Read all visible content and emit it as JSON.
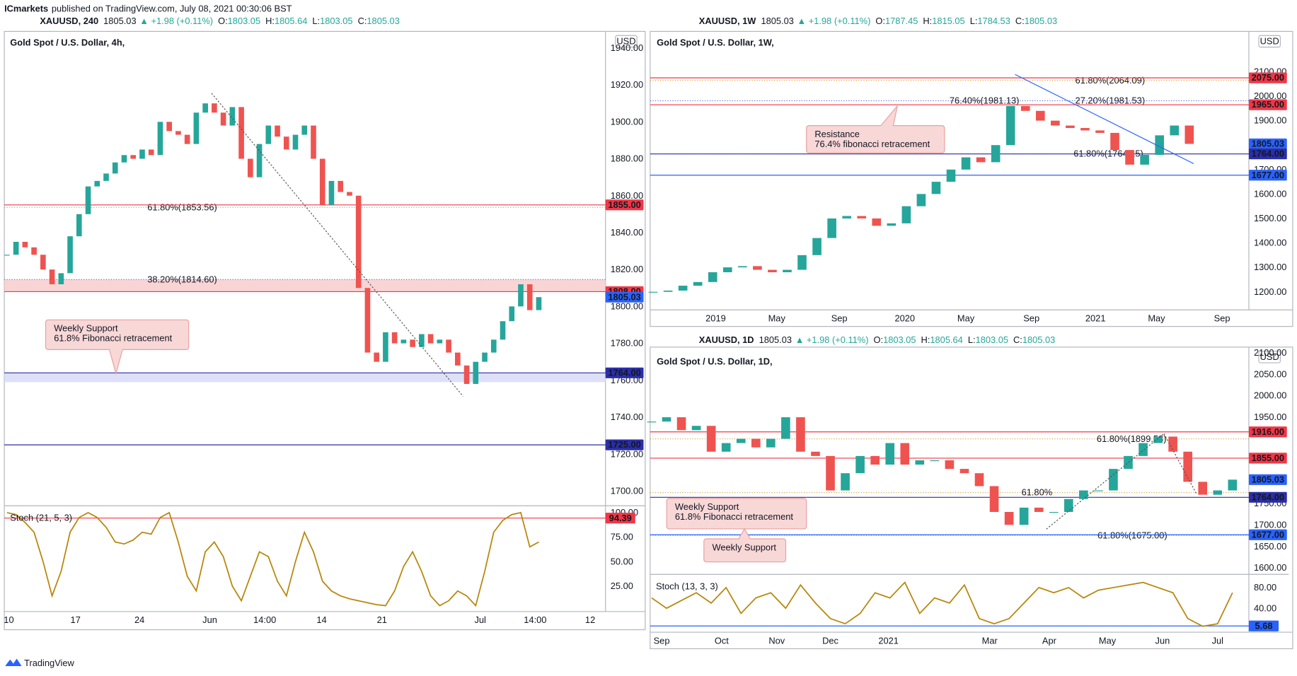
{
  "header": {
    "publisher": "ICmarkets",
    "published": "published on TradingView.com, July 08, 2021 00:30:06 BST"
  },
  "footer": {
    "brand": "TradingView"
  },
  "chart_data": [
    {
      "type": "candlestick",
      "symbol": "XAUUSD, 240",
      "last": 1805.03,
      "arrow": "▲",
      "change": "+1.98 (+0.11%)",
      "ohlc": [
        {
          "key": "O:",
          "value": 1803.05
        },
        {
          "key": "H:",
          "value": 1805.64
        },
        {
          "key": "L:",
          "value": 1803.05
        },
        {
          "key": "C:",
          "value": 1805.03
        }
      ],
      "title": "Gold Spot / U.S. Dollar, 4h,",
      "currency": "USD",
      "up_color": "#26a69a",
      "down_color": "#ef5350",
      "closes": [
        1828,
        1835,
        1832,
        1828,
        1820,
        1812,
        1818,
        1838,
        1850,
        1865,
        1868,
        1872,
        1878,
        1882,
        1880,
        1885,
        1882,
        1900,
        1895,
        1893,
        1888,
        1905,
        1910,
        1905,
        1898,
        1908,
        1880,
        1870,
        1888,
        1898,
        1892,
        1885,
        1893,
        1898,
        1880,
        1855,
        1868,
        1862,
        1860,
        1810,
        1775,
        1770,
        1786,
        1780,
        1782,
        1778,
        1785,
        1780,
        1782,
        1775,
        1768,
        1758,
        1770,
        1775,
        1782,
        1792,
        1800,
        1812,
        1798,
        1805.03
      ],
      "xlim": [
        -0.3,
        66.4
      ],
      "xticks": [
        {
          "value": 0.2,
          "label": "10"
        },
        {
          "value": 7.6,
          "label": "17"
        },
        {
          "value": 14.7,
          "label": "24"
        },
        {
          "value": 22.5,
          "label": "Jun"
        },
        {
          "value": 28.6,
          "label": "14:00"
        },
        {
          "value": 34.9,
          "label": "14"
        },
        {
          "value": 41.6,
          "label": "21"
        },
        {
          "value": 52.5,
          "label": "Jul"
        },
        {
          "value": 58.6,
          "label": "14:00"
        },
        {
          "value": 64.7,
          "label": "12"
        }
      ],
      "ylim": [
        1692,
        1949
      ],
      "yticks": [
        {
          "value": 1700,
          "label": "1700.00"
        },
        {
          "value": 1720,
          "label": "1720.00"
        },
        {
          "value": 1740,
          "label": "1740.00"
        },
        {
          "value": 1760,
          "label": "1760.00"
        },
        {
          "value": 1780,
          "label": "1780.00"
        },
        {
          "value": 1800,
          "label": "1800.00"
        },
        {
          "value": 1820,
          "label": "1820.00"
        },
        {
          "value": 1840,
          "label": "1840.00"
        },
        {
          "value": 1860,
          "label": "1860.00"
        },
        {
          "value": 1880,
          "label": "1880.00"
        },
        {
          "value": 1900,
          "label": "1900.00"
        },
        {
          "value": 1920,
          "label": "1920.00"
        },
        {
          "value": 1940,
          "label": "1940.00"
        }
      ],
      "price_tags": [
        {
          "value": 1855,
          "label": "1855.00",
          "color": "#f23645",
          "line": true
        },
        {
          "value": 1808,
          "label": "1808.00",
          "color": "#f23645",
          "line": true
        },
        {
          "value": 1805.03,
          "label": "1805.03",
          "color": "#2962ff",
          "line": false
        },
        {
          "value": 1764,
          "label": "1764.00",
          "color": "#2a2ea8",
          "line": true
        },
        {
          "value": 1725,
          "label": "1725.00",
          "color": "#2a2ea8",
          "line": true
        }
      ],
      "zones": [
        {
          "from": 1808,
          "to": 1814.6,
          "color": "#f8c9c9"
        },
        {
          "from": 1759,
          "to": 1764,
          "color": "#d5d8f5"
        }
      ],
      "fib_labels": [
        {
          "value": 1853.56,
          "label": "61.80%(1853.56)",
          "color": "#c8961e"
        },
        {
          "value": 1814.6,
          "label": "38.20%(1814.60)",
          "color": "#2962ff"
        }
      ],
      "lines": [
        {
          "x": [
            22.7,
            50.6
          ],
          "y": [
            1915.5,
            1751.3
          ],
          "color": "#555555",
          "dashed": true
        }
      ],
      "notes": [
        {
          "lines": [
            "Weekly Support",
            "61.8% Fibonacci retracement"
          ]
        }
      ],
      "stoch": {
        "label": "Stoch (21, 5, 3)",
        "color": "#b8860b",
        "values": [
          100,
          98,
          90,
          80,
          50,
          15,
          40,
          80,
          95,
          100,
          95,
          85,
          70,
          68,
          72,
          80,
          78,
          95,
          100,
          70,
          35,
          20,
          60,
          70,
          55,
          25,
          10,
          35,
          60,
          55,
          30,
          15,
          50,
          80,
          60,
          30,
          20,
          15,
          12,
          10,
          8,
          6,
          5,
          20,
          45,
          60,
          40,
          15,
          5,
          10,
          20,
          15,
          5,
          40,
          80,
          92,
          98,
          100,
          65,
          70
        ],
        "ylim": [
          -1,
          107
        ],
        "yticks": [
          {
            "value": 25,
            "label": "25.00"
          },
          {
            "value": 50,
            "label": "50.00"
          },
          {
            "value": 75,
            "label": "75.00"
          },
          {
            "value": 100,
            "label": "100.00"
          }
        ],
        "tag": {
          "value": 94.39,
          "color": "#f23645",
          "line": true
        }
      }
    },
    {
      "type": "candlestick",
      "symbol": "XAUUSD, 1W",
      "last": 1805.03,
      "arrow": "▲",
      "change": "+1.98 (+0.11%)",
      "ohlc": [
        {
          "key": "O:",
          "value": 1787.45
        },
        {
          "key": "H:",
          "value": 1815.05
        },
        {
          "key": "L:",
          "value": 1784.53
        },
        {
          "key": "C:",
          "value": 1805.03
        }
      ],
      "title": "Gold Spot / U.S. Dollar, 1W,",
      "currency": "USD",
      "up_color": "#26a69a",
      "down_color": "#ef5350",
      "closes": [
        1200,
        1205,
        1225,
        1240,
        1280,
        1300,
        1305,
        1290,
        1280,
        1290,
        1350,
        1420,
        1500,
        1510,
        1500,
        1470,
        1480,
        1550,
        1600,
        1650,
        1700,
        1750,
        1730,
        1800,
        1960,
        1940,
        1900,
        1880,
        1870,
        1860,
        1850,
        1780,
        1720,
        1760,
        1840,
        1880,
        1805.03
      ],
      "xlim": [
        -0.2,
        40
      ],
      "xticks": [
        {
          "value": 4.2,
          "label": "2019"
        },
        {
          "value": 8.3,
          "label": "May"
        },
        {
          "value": 12.5,
          "label": "Sep"
        },
        {
          "value": 16.9,
          "label": "2020"
        },
        {
          "value": 21,
          "label": "May"
        },
        {
          "value": 25.4,
          "label": "Sep"
        },
        {
          "value": 29.7,
          "label": "2021"
        },
        {
          "value": 33.8,
          "label": "May"
        },
        {
          "value": 38.2,
          "label": "Sep"
        }
      ],
      "ylim": [
        1126,
        2265
      ],
      "yticks": [
        {
          "value": 1200,
          "label": "1200.00"
        },
        {
          "value": 1300,
          "label": "1300.00"
        },
        {
          "value": 1400,
          "label": "1400.00"
        },
        {
          "value": 1500,
          "label": "1500.00"
        },
        {
          "value": 1600,
          "label": "1600.00"
        },
        {
          "value": 1700,
          "label": "1700.00"
        },
        {
          "value": 1900,
          "label": "1900.00"
        },
        {
          "value": 2000,
          "label": "2000.00"
        },
        {
          "value": 2100,
          "label": "2100.00"
        }
      ],
      "price_tags": [
        {
          "value": 2075,
          "label": "2075.00",
          "color": "#f23645",
          "line": true
        },
        {
          "value": 1965,
          "label": "1965.00",
          "color": "#f23645",
          "line": true
        },
        {
          "value": 1805.03,
          "label": "1805.03",
          "color": "#2962ff",
          "line": false
        },
        {
          "value": 1764,
          "label": "1764.00",
          "color": "#2a2ea8",
          "line": true
        },
        {
          "value": 1677,
          "label": "1677.00",
          "color": "#2962ff",
          "line": true
        }
      ],
      "zones": [],
      "fib_labels": [
        {
          "value": 2064.09,
          "label": "61.80%(2064.09)",
          "color": "#c8961e"
        },
        {
          "value": 1981.53,
          "label": "27.20%(1981.53)",
          "color": "#c8961e"
        },
        {
          "value": 1981.13,
          "label": "76.40%(1981.13)",
          "color": "#2962ff"
        },
        {
          "value": 1764.15,
          "label": "61.80%(1764.15)",
          "color": "#c8961e"
        }
      ],
      "lines": [
        {
          "x": [
            24.3,
            36.3
          ],
          "y": [
            2089,
            1724
          ],
          "color": "#2962ff",
          "dashed": false
        }
      ],
      "notes": [
        {
          "lines": [
            "Resistance",
            "76.4% fibonacci retracement"
          ]
        }
      ]
    },
    {
      "type": "candlestick",
      "symbol": "XAUUSD, 1D",
      "last": 1805.03,
      "arrow": "▲",
      "change": "+1.98 (+0.11%)",
      "ohlc": [
        {
          "key": "O:",
          "value": 1803.05
        },
        {
          "key": "H:",
          "value": 1805.64
        },
        {
          "key": "L:",
          "value": 1803.05
        },
        {
          "key": "C:",
          "value": 1805.03
        }
      ],
      "title": "Gold Spot / U.S. Dollar, 1D,",
      "currency": "USD",
      "up_color": "#26a69a",
      "down_color": "#ef5350",
      "closes": [
        1940,
        1950,
        1920,
        1930,
        1870,
        1890,
        1900,
        1880,
        1900,
        1950,
        1870,
        1860,
        1780,
        1820,
        1860,
        1840,
        1890,
        1840,
        1850,
        1850,
        1830,
        1820,
        1790,
        1730,
        1700,
        1740,
        1730,
        1730,
        1760,
        1780,
        1780,
        1830,
        1860,
        1890,
        1905,
        1870,
        1800,
        1770,
        1780,
        1805.03
      ],
      "xlim": [
        -0.1,
        40.1
      ],
      "xticks": [
        {
          "value": 0.67,
          "label": "Sep"
        },
        {
          "value": 4.7,
          "label": "Oct"
        },
        {
          "value": 8.4,
          "label": "Nov"
        },
        {
          "value": 12,
          "label": "Dec"
        },
        {
          "value": 15.9,
          "label": "2021"
        },
        {
          "value": 22.7,
          "label": "Mar"
        },
        {
          "value": 26.7,
          "label": "Apr"
        },
        {
          "value": 30.6,
          "label": "May"
        },
        {
          "value": 34.3,
          "label": "Jun"
        },
        {
          "value": 38,
          "label": "Jul"
        }
      ],
      "ylim": [
        1585,
        2113
      ],
      "yticks": [
        {
          "value": 1600,
          "label": "1600.00"
        },
        {
          "value": 1650,
          "label": "1650.00"
        },
        {
          "value": 1700,
          "label": "1700.00"
        },
        {
          "value": 1750,
          "label": "1750.00"
        },
        {
          "value": 1950,
          "label": "1950.00"
        },
        {
          "value": 2000,
          "label": "2000.00"
        },
        {
          "value": 2050,
          "label": "2050.00"
        },
        {
          "value": 2100,
          "label": "2100.00"
        }
      ],
      "price_tags": [
        {
          "value": 1916,
          "label": "1916.00",
          "color": "#f23645",
          "line": true
        },
        {
          "value": 1855,
          "label": "1855.00",
          "color": "#f23645",
          "line": true
        },
        {
          "value": 1805.03,
          "label": "1805.03",
          "color": "#2962ff",
          "line": false
        },
        {
          "value": 1764,
          "label": "1764.00",
          "color": "#2a2ea8",
          "line": true
        },
        {
          "value": 1677,
          "label": "1677.00",
          "color": "#2962ff",
          "line": true
        }
      ],
      "zones": [],
      "fib_labels": [
        {
          "value": 1899.58,
          "label": "61.80%(1899.58)",
          "color": "#c8961e"
        },
        {
          "value": 1775,
          "label": "61.80%",
          "color": "#c8961e"
        },
        {
          "value": 1675,
          "label": "61.80%(1675.00)",
          "color": "#c8961e"
        }
      ],
      "lines": [
        {
          "x": [
            26.5,
            34.4
          ],
          "y": [
            1690,
            1912
          ],
          "color": "#555555",
          "dashed": true
        },
        {
          "x": [
            34.4,
            36.6
          ],
          "y": [
            1912,
            1771
          ],
          "color": "#555555",
          "dashed": true
        }
      ],
      "notes": [
        {
          "lines": [
            "Weekly Support",
            "61.8% Fibonacci retracement"
          ]
        },
        {
          "lines": [
            "Weekly Support"
          ]
        }
      ],
      "stoch": {
        "label": "Stoch (13, 3, 3)",
        "color": "#b8860b",
        "values": [
          60,
          40,
          55,
          70,
          50,
          80,
          30,
          60,
          70,
          40,
          85,
          50,
          20,
          10,
          30,
          70,
          60,
          90,
          30,
          60,
          50,
          85,
          20,
          10,
          20,
          50,
          80,
          70,
          80,
          60,
          75,
          80,
          85,
          90,
          80,
          70,
          20,
          5,
          10,
          70
        ],
        "ylim": [
          -6.4,
          105.6
        ],
        "yticks": [
          {
            "value": 40,
            "label": "40.00"
          },
          {
            "value": 80,
            "label": "80.00"
          }
        ],
        "tag": {
          "value": 5.68,
          "color": "#2962ff",
          "line": true
        }
      }
    }
  ]
}
